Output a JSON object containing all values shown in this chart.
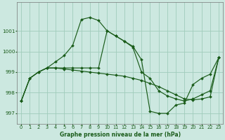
{
  "title": "Graphe pression niveau de la mer (hPa)",
  "bg_color": "#cce8e0",
  "grid_color": "#a0ccbb",
  "line_color": "#1a5c1a",
  "xlim": [
    -0.5,
    23.5
  ],
  "ylim": [
    996.5,
    1002.4
  ],
  "yticks": [
    997,
    998,
    999,
    1000,
    1001
  ],
  "xticks": [
    0,
    1,
    2,
    3,
    4,
    5,
    6,
    7,
    8,
    9,
    10,
    11,
    12,
    13,
    14,
    15,
    16,
    17,
    18,
    19,
    20,
    21,
    22,
    23
  ],
  "series": [
    [
      997.6,
      998.7,
      999.0,
      999.2,
      999.5,
      999.8,
      1000.3,
      1001.55,
      1001.65,
      1001.5,
      1001.0,
      1000.75,
      1000.5,
      1000.2,
      999.0,
      998.7,
      998.1,
      997.85,
      997.7,
      997.6,
      997.7,
      997.9,
      998.1,
      999.7
    ],
    [
      997.6,
      998.7,
      999.0,
      999.2,
      999.2,
      999.2,
      999.2,
      999.2,
      999.2,
      999.2,
      1001.0,
      1000.75,
      1000.5,
      1000.25,
      999.6,
      997.1,
      997.0,
      997.0,
      997.4,
      997.5,
      998.4,
      998.7,
      998.9,
      999.7
    ],
    [
      997.6,
      998.7,
      999.0,
      999.2,
      999.2,
      999.15,
      999.1,
      999.05,
      999.0,
      998.95,
      998.9,
      998.85,
      998.8,
      998.7,
      998.6,
      998.45,
      998.3,
      998.1,
      997.9,
      997.7,
      997.65,
      997.7,
      997.8,
      999.7
    ]
  ]
}
